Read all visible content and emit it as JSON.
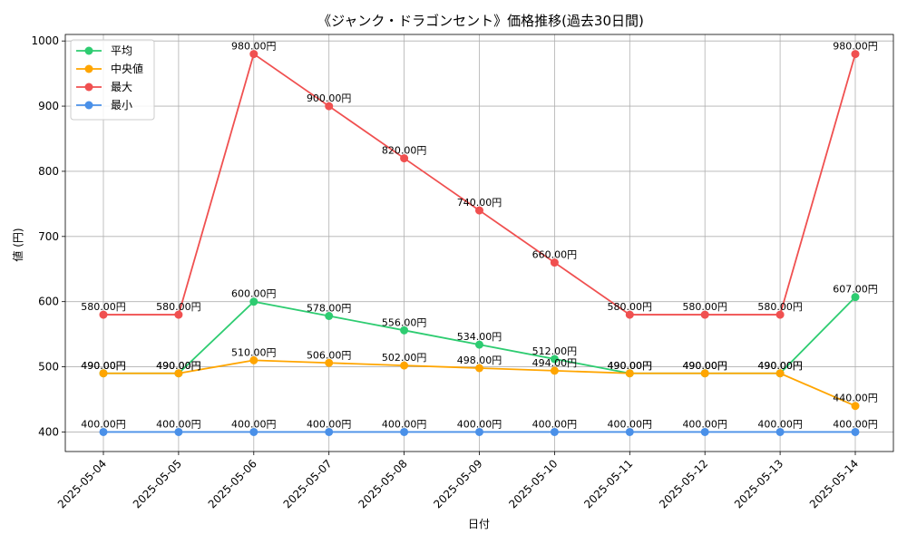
{
  "chart_data": {
    "type": "line",
    "title": "《ジャンク・ドラゴンセント》価格推移(過去30日間)",
    "xlabel": "日付",
    "ylabel": "値 (円)",
    "categories": [
      "2025-05-04",
      "2025-05-05",
      "2025-05-06",
      "2025-05-07",
      "2025-05-08",
      "2025-05-09",
      "2025-05-10",
      "2025-05-11",
      "2025-05-12",
      "2025-05-13",
      "2025-05-14"
    ],
    "ylim": [
      370,
      1010
    ],
    "yticks": [
      400,
      500,
      600,
      700,
      800,
      900,
      1000
    ],
    "grid": true,
    "legend_position": "top-left",
    "label_suffix": "円",
    "series": [
      {
        "name": "平均",
        "color": "#2ecc71",
        "values": [
          490,
          490,
          600,
          578,
          556,
          534,
          512,
          490,
          490,
          490,
          607
        ]
      },
      {
        "name": "中央値",
        "color": "#ffa500",
        "values": [
          490,
          490,
          510,
          506,
          502,
          498,
          494,
          490,
          490,
          490,
          440
        ]
      },
      {
        "name": "最大",
        "color": "#f05050",
        "values": [
          580,
          580,
          980,
          900,
          820,
          740,
          660,
          580,
          580,
          580,
          980
        ]
      },
      {
        "name": "最小",
        "color": "#4a90e8",
        "values": [
          400,
          400,
          400,
          400,
          400,
          400,
          400,
          400,
          400,
          400,
          400
        ]
      }
    ]
  }
}
